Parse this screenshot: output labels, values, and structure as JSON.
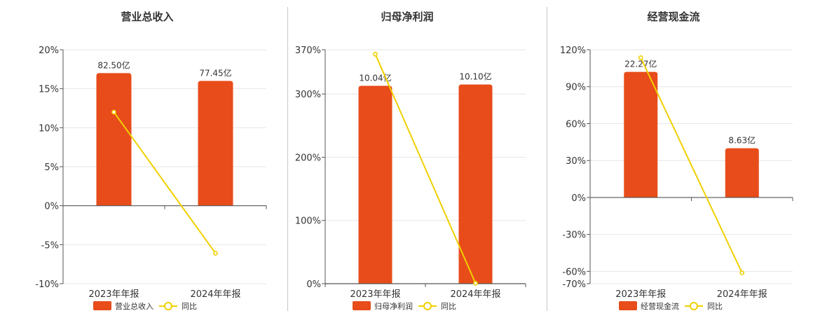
{
  "colors": {
    "bar": "#e84c1a",
    "line": "#f0d000",
    "axis": "#555555",
    "grid": "#e6e6e6",
    "text": "#333333"
  },
  "chart_data": [
    {
      "type": "bar",
      "title": "营业总收入",
      "categories": [
        "2023年年报",
        "2024年年报"
      ],
      "ylim": [
        -10,
        20
      ],
      "yticks": [
        20,
        15,
        10,
        5,
        0,
        -5,
        -10
      ],
      "ytick_labels": [
        "20%",
        "15%",
        "10%",
        "5%",
        "0%",
        "-5%",
        "-10%"
      ],
      "series": [
        {
          "name": "营业总收入",
          "kind": "bar",
          "values": [
            17.0,
            16.0
          ],
          "data_labels": [
            "82.50亿",
            "77.45亿"
          ]
        },
        {
          "name": "同比",
          "kind": "line",
          "values": [
            12.0,
            -6.1
          ]
        }
      ],
      "legend": "bottom-center"
    },
    {
      "type": "bar",
      "title": "归母净利润",
      "categories": [
        "2023年年报",
        "2024年年报"
      ],
      "ylim": [
        0,
        370
      ],
      "yticks": [
        370,
        300,
        200,
        100,
        0
      ],
      "ytick_labels": [
        "370%",
        "300%",
        "200%",
        "100%",
        "0%"
      ],
      "series": [
        {
          "name": "归母净利润",
          "kind": "bar",
          "values": [
            313,
            315
          ],
          "data_labels": [
            "10.04亿",
            "10.10亿"
          ]
        },
        {
          "name": "同比",
          "kind": "line",
          "values": [
            363,
            0.6
          ]
        }
      ],
      "legend": "bottom-center"
    },
    {
      "type": "bar",
      "title": "经营现金流",
      "categories": [
        "2023年年报",
        "2024年年报"
      ],
      "ylim": [
        -70,
        120
      ],
      "yticks": [
        120,
        90,
        60,
        30,
        0,
        -30,
        -60,
        -70
      ],
      "ytick_labels": [
        "120%",
        "90%",
        "60%",
        "30%",
        "0%",
        "-30%",
        "-60%",
        "-70%"
      ],
      "series": [
        {
          "name": "经营现金流",
          "kind": "bar",
          "values": [
            102,
            40
          ],
          "data_labels": [
            "22.27亿",
            "8.63亿"
          ]
        },
        {
          "name": "同比",
          "kind": "line",
          "values": [
            113.5,
            -61.2
          ]
        }
      ],
      "legend": "bottom-center"
    }
  ]
}
